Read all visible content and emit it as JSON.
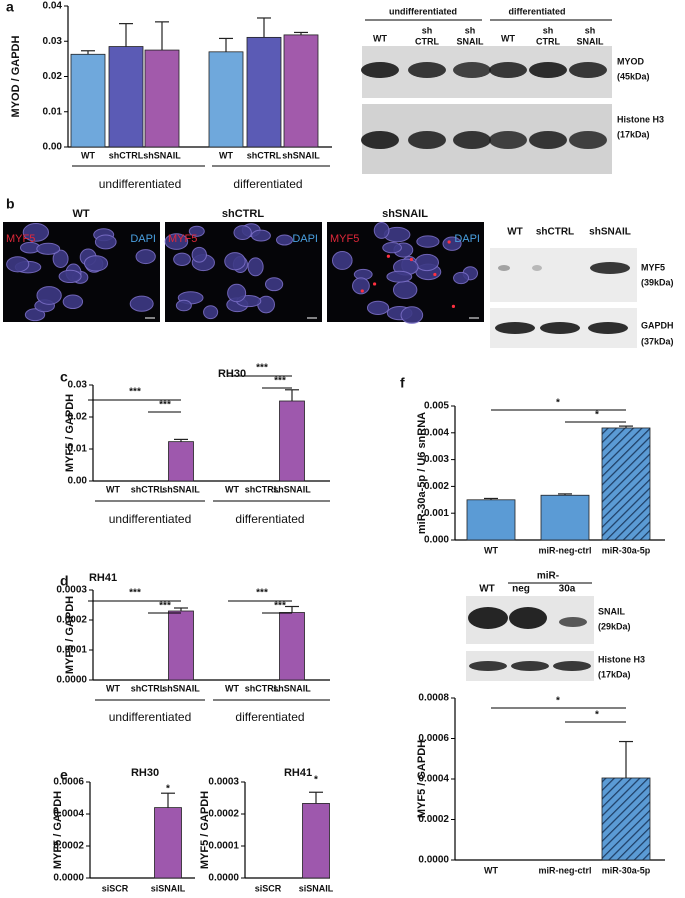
{
  "panels": [
    "a",
    "b",
    "c",
    "d",
    "e",
    "f"
  ],
  "chart_data": [
    {
      "type": "bar",
      "ylabel": "MYOD / GAPDH",
      "categories": [
        "WT",
        "shCTRL",
        "shSNAIL",
        "WT",
        "shCTRL",
        "shSNAIL"
      ],
      "groups": [
        "undifferentiated",
        "differentiated"
      ],
      "values": [
        0.0263,
        0.0285,
        0.0275,
        0.027,
        0.0311,
        0.0318
      ],
      "errors": [
        0.001,
        0.0065,
        0.008,
        0.0038,
        0.0055,
        0.0007
      ],
      "colors": [
        "#6fa8dc",
        "#5b5bb5",
        "#a25aab",
        "#6fa8dc",
        "#5b5bb5",
        "#a25aab"
      ],
      "ylim": [
        0,
        0.04
      ],
      "yticks": [
        {
          "value": 0,
          "label": "0.00"
        },
        0.01,
        0.02,
        0.03,
        0.04
      ]
    },
    {
      "type": "bar",
      "title": "RH30",
      "ylabel": "MYF5 / GAPDH",
      "categories": [
        "WT",
        "shCTRL",
        "shSNAIL",
        "WT",
        "shCTRL",
        "shSNAIL"
      ],
      "groups": [
        "undifferentiated",
        "differentiated"
      ],
      "values": [
        0,
        0,
        0.0123,
        0,
        0,
        0.025
      ],
      "errors": [
        null,
        null,
        0.0007,
        null,
        null,
        0.0035
      ],
      "colors": [
        "#9e58ad",
        "#9e58ad",
        "#9e58ad",
        "#9e58ad",
        "#9e58ad",
        "#9e58ad"
      ],
      "annotations": [
        "***",
        "***",
        "***",
        "***"
      ],
      "ylim": [
        0,
        0.03
      ],
      "yticks": [
        {
          "value": 0,
          "label": "0.00"
        },
        0.01,
        0.02,
        0.03
      ]
    },
    {
      "type": "bar",
      "title": "RH41",
      "ylabel": "MYF5 / GAPDH",
      "categories": [
        "WT",
        "shCTRL",
        "shSNAIL",
        "WT",
        "shCTRL",
        "shSNAIL"
      ],
      "groups": [
        "undifferentiated",
        "differentiated"
      ],
      "values": [
        0,
        0,
        0.00023,
        0,
        0,
        0.000225
      ],
      "errors": [
        null,
        null,
        1e-05,
        null,
        null,
        2e-05
      ],
      "colors": [
        "#9e58ad",
        "#9e58ad",
        "#9e58ad",
        "#9e58ad",
        "#9e58ad",
        "#9e58ad"
      ],
      "annotations": [
        "***",
        "***",
        "***",
        "***"
      ],
      "ylim": [
        0,
        0.0003
      ],
      "yticks": [
        {
          "value": 0,
          "label": "0.0000"
        },
        0.0001,
        0.0002,
        0.0003
      ]
    },
    {
      "type": "bar",
      "title": "RH30",
      "ylabel": "MYF5 / GAPDH",
      "categories": [
        "siSCR",
        "siSNAIL"
      ],
      "values": [
        0,
        0.00044
      ],
      "errors": [
        null,
        9e-05
      ],
      "colors": [
        "#9e58ad",
        "#9e58ad"
      ],
      "annotations": [
        "*"
      ],
      "ylim": [
        0,
        0.0006
      ],
      "yticks": [
        {
          "value": 0,
          "label": "0.0000"
        },
        0.0002,
        0.0004,
        0.0006
      ]
    },
    {
      "type": "bar",
      "title": "RH41",
      "ylabel": "MYF5 / GAPDH",
      "categories": [
        "siSCR",
        "siSNAIL"
      ],
      "values": [
        0,
        0.000233
      ],
      "errors": [
        null,
        3.5e-05
      ],
      "colors": [
        "#9e58ad",
        "#9e58ad"
      ],
      "annotations": [
        "*"
      ],
      "ylim": [
        0,
        0.0003
      ],
      "yticks": [
        {
          "value": 0,
          "label": "0.0000"
        },
        0.0001,
        0.0002,
        0.0003
      ]
    },
    {
      "type": "bar",
      "ylabel": "miR-30a-5p / U6 snRNA",
      "categories": [
        "WT",
        "miR-neg-ctrl",
        "miR-30a-5p"
      ],
      "values": [
        0.0015,
        0.00167,
        0.00418
      ],
      "errors": [
        5e-05,
        5e-05,
        7e-05
      ],
      "colors": [
        "#5b9bd5",
        "#5b9bd5",
        "#5b9bd5"
      ],
      "hatch": [
        false,
        false,
        true
      ],
      "annotations": [
        "*",
        "*"
      ],
      "ylim": [
        0,
        0.005
      ],
      "yticks": [
        {
          "value": 0,
          "label": "0.000"
        },
        0.001,
        0.002,
        0.003,
        0.004,
        0.005
      ]
    },
    {
      "type": "bar",
      "ylabel": "MYF5 / GAPDH",
      "categories": [
        "WT",
        "miR-neg-ctrl",
        "miR-30a-5p"
      ],
      "values": [
        0,
        0,
        0.000405
      ],
      "errors": [
        null,
        null,
        0.00018
      ],
      "colors": [
        "#5b9bd5",
        "#5b9bd5",
        "#5b9bd5"
      ],
      "hatch": [
        false,
        false,
        true
      ],
      "annotations": [
        "*",
        "*"
      ],
      "ylim": [
        0,
        0.0008
      ],
      "yticks": [
        {
          "value": 0,
          "label": "0.0000"
        },
        0.0002,
        0.0004,
        0.0006,
        0.0008
      ]
    }
  ],
  "blot_a": {
    "groups": [
      "undifferentiated",
      "differentiated"
    ],
    "lanes": [
      [
        "WT"
      ],
      [
        "sh",
        "CTRL"
      ],
      [
        "sh",
        "SNAIL"
      ],
      [
        "WT"
      ],
      [
        "sh",
        "CTRL"
      ],
      [
        "sh",
        "SNAIL"
      ]
    ],
    "bands": [
      [
        "MYOD",
        "(45kDa)"
      ],
      [
        "Histone H3",
        "(17kDa)"
      ]
    ]
  },
  "micrographs": {
    "titles": [
      "WT",
      "shCTRL",
      "shSNAIL"
    ],
    "stains": [
      "MYF5",
      "DAPI"
    ]
  },
  "blot_b": {
    "lanes": [
      "WT",
      "shCTRL",
      "shSNAIL"
    ],
    "bands": [
      [
        "MYF5",
        "(39kDa)"
      ],
      [
        "GAPDH",
        "(37kDa)"
      ]
    ]
  },
  "blot_f": {
    "header": "miR-",
    "lanes": [
      "WT",
      "neg",
      "30a"
    ],
    "bands": [
      [
        "SNAIL",
        "(29kDa)"
      ],
      [
        "Histone H3",
        "(17kDa)"
      ]
    ]
  }
}
